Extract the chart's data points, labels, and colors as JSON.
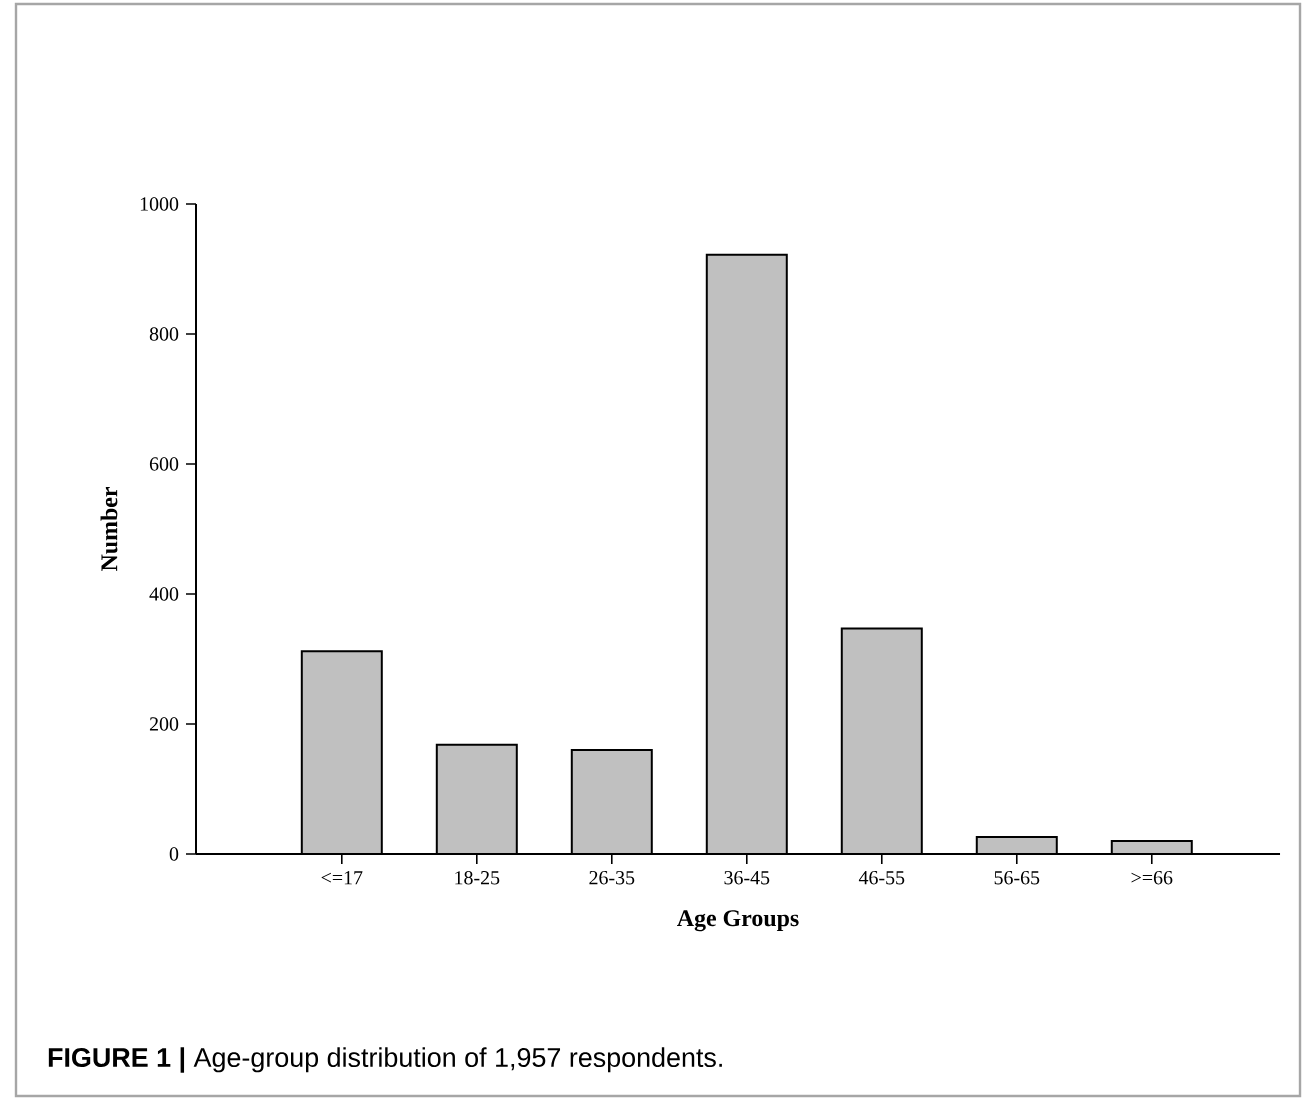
{
  "chart_data": {
    "type": "bar",
    "xlabel": "Age Groups",
    "ylabel": "Number",
    "categories": [
      "<=17",
      "18-25",
      "26-35",
      "36-45",
      "46-55",
      "56-65",
      ">=66"
    ],
    "values": [
      312,
      168,
      160,
      922,
      347,
      26,
      20
    ],
    "color": "#c0c0c0",
    "ylim": [
      0,
      1000
    ],
    "yticks": [
      0,
      200,
      400,
      600,
      800,
      1000
    ],
    "grid": false,
    "annotations": [
      "**FIGURE 1 |** Age-group distribution of 1,957 respondents."
    ]
  }
}
